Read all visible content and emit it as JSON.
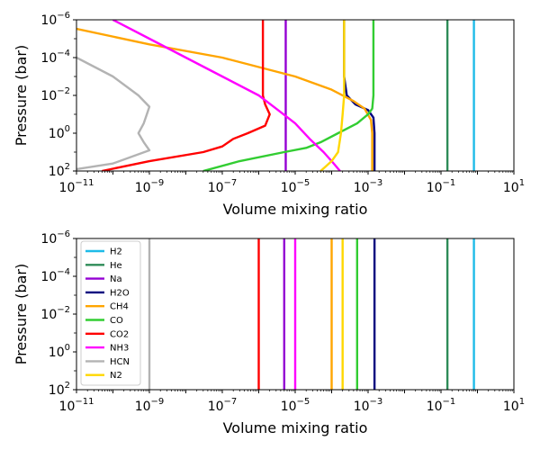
{
  "chart_data": [
    {
      "type": "line",
      "xlabel": "Volume mixing ratio",
      "ylabel": "Pressure (bar)",
      "xscale": "log",
      "yscale": "log",
      "y_inverted": true,
      "xlim": [
        1e-11,
        10
      ],
      "ylim": [
        100,
        1e-06
      ],
      "xticks": [
        1e-11,
        1e-09,
        1e-07,
        1e-05,
        0.001,
        0.1,
        10
      ],
      "xtick_labels": [
        [
          "10",
          "−11"
        ],
        [
          "10",
          "−9"
        ],
        [
          "10",
          "−7"
        ],
        [
          "10",
          "−5"
        ],
        [
          "10",
          "−3"
        ],
        [
          "10",
          "−1"
        ],
        [
          "10",
          "1"
        ]
      ],
      "yticks": [
        1e-06,
        0.0001,
        0.01,
        1,
        100
      ],
      "ytick_labels": [
        [
          "10",
          "−6"
        ],
        [
          "10",
          "−4"
        ],
        [
          "10",
          "−2"
        ],
        [
          "10",
          "0"
        ],
        [
          "10",
          "2"
        ]
      ],
      "legend": false,
      "series": [
        {
          "name": "H2",
          "color": "#1ebbe8",
          "points": [
            [
              0.8,
              1e-06
            ],
            [
              0.8,
              100
            ]
          ]
        },
        {
          "name": "He",
          "color": "#2e8b57",
          "points": [
            [
              0.15,
              1e-06
            ],
            [
              0.15,
              100
            ]
          ]
        },
        {
          "name": "Na",
          "color": "#9400d3",
          "points": [
            [
              5.5e-06,
              1e-06
            ],
            [
              5.5e-06,
              100
            ]
          ]
        },
        {
          "name": "H2O",
          "color": "#00007f",
          "points": [
            [
              0.00022,
              1e-06
            ],
            [
              0.00022,
              0.001
            ],
            [
              0.00026,
              0.01
            ],
            [
              0.00045,
              0.03
            ],
            [
              0.001,
              0.06
            ],
            [
              0.0014,
              0.15
            ],
            [
              0.0015,
              1
            ],
            [
              0.0015,
              100
            ]
          ]
        },
        {
          "name": "CH4",
          "color": "#ffa500",
          "points": [
            [
              1e-11,
              3e-06
            ],
            [
              1e-09,
              2e-05
            ],
            [
              1e-07,
              0.0001
            ],
            [
              1e-05,
              0.001
            ],
            [
              0.0001,
              0.005
            ],
            [
              0.0004,
              0.02
            ],
            [
              0.0008,
              0.05
            ],
            [
              0.0012,
              0.2
            ],
            [
              0.0013,
              1
            ],
            [
              0.0013,
              100
            ]
          ]
        },
        {
          "name": "CO",
          "color": "#32cd32",
          "points": [
            [
              0.0014,
              1e-06
            ],
            [
              0.0014,
              0.01
            ],
            [
              0.0013,
              0.05
            ],
            [
              0.001,
              0.1
            ],
            [
              0.0005,
              0.3
            ],
            [
              0.00015,
              1
            ],
            [
              5e-05,
              3
            ],
            [
              2e-05,
              6
            ],
            [
              5e-06,
              10
            ],
            [
              3e-07,
              30
            ],
            [
              3e-08,
              100
            ]
          ]
        },
        {
          "name": "CO2",
          "color": "#ff0000",
          "points": [
            [
              1.3e-06,
              1e-06
            ],
            [
              1.3e-06,
              0.01
            ],
            [
              1.5e-06,
              0.03
            ],
            [
              2e-06,
              0.1
            ],
            [
              1.5e-06,
              0.4
            ],
            [
              5e-07,
              1
            ],
            [
              2e-07,
              2
            ],
            [
              1e-07,
              5
            ],
            [
              3e-08,
              10
            ],
            [
              1e-09,
              30
            ],
            [
              5e-11,
              100
            ]
          ]
        },
        {
          "name": "NH3",
          "color": "#ff00ff",
          "points": [
            [
              1e-10,
              1e-06
            ],
            [
              1e-09,
              1e-05
            ],
            [
              1e-08,
              0.0001
            ],
            [
              1e-07,
              0.001
            ],
            [
              1e-06,
              0.01
            ],
            [
              3e-06,
              0.05
            ],
            [
              1e-05,
              0.3
            ],
            [
              2.5e-05,
              2
            ],
            [
              6e-05,
              10
            ],
            [
              0.0001,
              30
            ],
            [
              0.00017,
              100
            ]
          ]
        },
        {
          "name": "HCN",
          "color": "#b3b3b3",
          "points": [
            [
              1e-11,
              0.0001
            ],
            [
              1e-10,
              0.001
            ],
            [
              5e-10,
              0.01
            ],
            [
              1e-09,
              0.04
            ],
            [
              7e-10,
              0.3
            ],
            [
              5e-10,
              1
            ],
            [
              7e-10,
              3
            ],
            [
              1e-09,
              8
            ],
            [
              1e-10,
              40
            ],
            [
              1e-11,
              80
            ]
          ]
        },
        {
          "name": "N2",
          "color": "#ffd700",
          "points": [
            [
              0.00022,
              1e-06
            ],
            [
              0.00022,
              0.01
            ],
            [
              0.0002,
              0.1
            ],
            [
              0.00018,
              1
            ],
            [
              0.00015,
              10
            ],
            [
              0.0001,
              30
            ],
            [
              5e-05,
              100
            ]
          ]
        }
      ]
    },
    {
      "type": "line",
      "xlabel": "Volume mixing ratio",
      "ylabel": "Pressure (bar)",
      "xscale": "log",
      "yscale": "log",
      "y_inverted": true,
      "xlim": [
        1e-11,
        10
      ],
      "ylim": [
        100,
        1e-06
      ],
      "xticks": [
        1e-11,
        1e-09,
        1e-07,
        1e-05,
        0.001,
        0.1,
        10
      ],
      "xtick_labels": [
        [
          "10",
          "−11"
        ],
        [
          "10",
          "−9"
        ],
        [
          "10",
          "−7"
        ],
        [
          "10",
          "−5"
        ],
        [
          "10",
          "−3"
        ],
        [
          "10",
          "−1"
        ],
        [
          "10",
          "1"
        ]
      ],
      "yticks": [
        1e-06,
        0.0001,
        0.01,
        1,
        100
      ],
      "ytick_labels": [
        [
          "10",
          "−6"
        ],
        [
          "10",
          "−4"
        ],
        [
          "10",
          "−2"
        ],
        [
          "10",
          "0"
        ],
        [
          "10",
          "2"
        ]
      ],
      "legend": true,
      "legend_position": "upper-left",
      "series": [
        {
          "name": "H2",
          "color": "#1ebbe8",
          "points": [
            [
              0.8,
              1e-06
            ],
            [
              0.8,
              100
            ]
          ]
        },
        {
          "name": "He",
          "color": "#2e8b57",
          "points": [
            [
              0.15,
              1e-06
            ],
            [
              0.15,
              100
            ]
          ]
        },
        {
          "name": "Na",
          "color": "#9400d3",
          "points": [
            [
              5e-06,
              1e-06
            ],
            [
              5e-06,
              100
            ]
          ]
        },
        {
          "name": "H2O",
          "color": "#00007f",
          "points": [
            [
              0.0015,
              1e-06
            ],
            [
              0.0015,
              100
            ]
          ]
        },
        {
          "name": "CH4",
          "color": "#ffa500",
          "points": [
            [
              0.0001,
              1e-06
            ],
            [
              0.0001,
              100
            ]
          ]
        },
        {
          "name": "CO",
          "color": "#32cd32",
          "points": [
            [
              0.0005,
              1e-06
            ],
            [
              0.0005,
              100
            ]
          ]
        },
        {
          "name": "CO2",
          "color": "#ff0000",
          "points": [
            [
              1e-06,
              1e-06
            ],
            [
              1e-06,
              100
            ]
          ]
        },
        {
          "name": "NH3",
          "color": "#ff00ff",
          "points": [
            [
              1e-05,
              1e-06
            ],
            [
              1e-05,
              100
            ]
          ]
        },
        {
          "name": "HCN",
          "color": "#b3b3b3",
          "points": [
            [
              1e-09,
              1e-06
            ],
            [
              1e-09,
              100
            ]
          ]
        },
        {
          "name": "N2",
          "color": "#ffd700",
          "points": [
            [
              0.0002,
              1e-06
            ],
            [
              0.0002,
              100
            ]
          ]
        }
      ]
    }
  ]
}
